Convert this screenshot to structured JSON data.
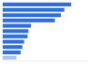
{
  "chart_data": {
    "type": "bar",
    "orientation": "horizontal",
    "categories": [
      null,
      null,
      null,
      null,
      null,
      null,
      null,
      null,
      null,
      null,
      null
    ],
    "values": [
      80,
      72,
      68,
      61,
      33,
      30,
      29,
      25,
      23,
      21,
      16
    ],
    "colors": [
      "#2f6fd6",
      "#2f6fd6",
      "#2f6fd6",
      "#2f6fd6",
      "#2f6fd6",
      "#2f6fd6",
      "#2f6fd6",
      "#2f6fd6",
      "#2f6fd6",
      "#2f6fd6",
      "#a9c3ee"
    ],
    "xlim": [
      0,
      100
    ],
    "tick_labels": false,
    "grid": false
  }
}
